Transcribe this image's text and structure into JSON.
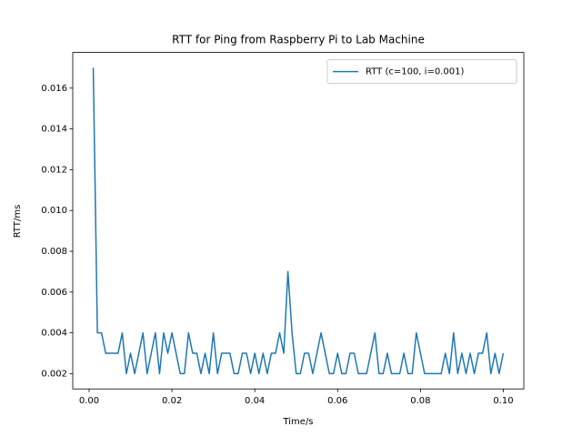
{
  "chart_data": {
    "type": "line",
    "title": "RTT for Ping from Raspberry Pi to Lab Machine",
    "x_label": "Time/s",
    "y_label": "RTT/ms",
    "x": [
      0.001,
      0.002,
      0.003,
      0.004,
      0.005,
      0.006,
      0.007,
      0.008,
      0.009,
      0.01,
      0.011,
      0.012,
      0.013,
      0.014,
      0.015,
      0.016,
      0.017,
      0.018,
      0.019,
      0.02,
      0.021,
      0.022,
      0.023,
      0.024,
      0.025,
      0.026,
      0.027,
      0.028,
      0.029,
      0.03,
      0.031,
      0.032,
      0.033,
      0.034,
      0.035,
      0.036,
      0.037,
      0.038,
      0.039,
      0.04,
      0.041,
      0.042,
      0.043,
      0.044,
      0.045,
      0.046,
      0.047,
      0.048,
      0.049,
      0.05,
      0.051,
      0.052,
      0.053,
      0.054,
      0.055,
      0.056,
      0.057,
      0.058,
      0.059,
      0.06,
      0.061,
      0.062,
      0.063,
      0.064,
      0.065,
      0.066,
      0.067,
      0.068,
      0.069,
      0.07,
      0.071,
      0.072,
      0.073,
      0.074,
      0.075,
      0.076,
      0.077,
      0.078,
      0.079,
      0.08,
      0.081,
      0.082,
      0.083,
      0.084,
      0.085,
      0.086,
      0.087,
      0.088,
      0.089,
      0.09,
      0.091,
      0.092,
      0.093,
      0.094,
      0.095,
      0.096,
      0.097,
      0.098,
      0.099,
      0.1
    ],
    "series": [
      {
        "name": "RTT (c=100, i=0.001)",
        "color": "#1f77b4",
        "values": [
          0.017,
          0.004,
          0.004,
          0.003,
          0.003,
          0.003,
          0.003,
          0.004,
          0.002,
          0.003,
          0.002,
          0.003,
          0.004,
          0.002,
          0.003,
          0.004,
          0.002,
          0.004,
          0.003,
          0.004,
          0.003,
          0.002,
          0.002,
          0.004,
          0.003,
          0.003,
          0.002,
          0.003,
          0.002,
          0.004,
          0.002,
          0.003,
          0.003,
          0.003,
          0.002,
          0.002,
          0.003,
          0.003,
          0.002,
          0.003,
          0.002,
          0.003,
          0.002,
          0.003,
          0.003,
          0.004,
          0.003,
          0.007,
          0.004,
          0.002,
          0.002,
          0.003,
          0.003,
          0.002,
          0.003,
          0.004,
          0.003,
          0.002,
          0.002,
          0.003,
          0.002,
          0.002,
          0.003,
          0.003,
          0.002,
          0.002,
          0.002,
          0.003,
          0.004,
          0.002,
          0.002,
          0.003,
          0.002,
          0.002,
          0.002,
          0.003,
          0.002,
          0.002,
          0.004,
          0.003,
          0.002,
          0.002,
          0.002,
          0.002,
          0.002,
          0.003,
          0.002,
          0.004,
          0.002,
          0.003,
          0.002,
          0.003,
          0.002,
          0.003,
          0.003,
          0.004,
          0.002,
          0.003,
          0.002,
          0.003
        ]
      }
    ],
    "xlim": [
      -0.00395,
      0.10495
    ],
    "ylim": [
      0.00125,
      0.01775
    ],
    "xticks": [
      {
        "value": 0,
        "label": "0.00"
      },
      0.02,
      0.04,
      0.06,
      0.08,
      {
        "value": 0.1,
        "label": "0.10"
      }
    ],
    "yticks": [
      0.002,
      0.004,
      0.006,
      0.008,
      {
        "value": 0.01,
        "label": "0.010"
      },
      0.012,
      0.014,
      0.016
    ],
    "legend": "upper right"
  }
}
